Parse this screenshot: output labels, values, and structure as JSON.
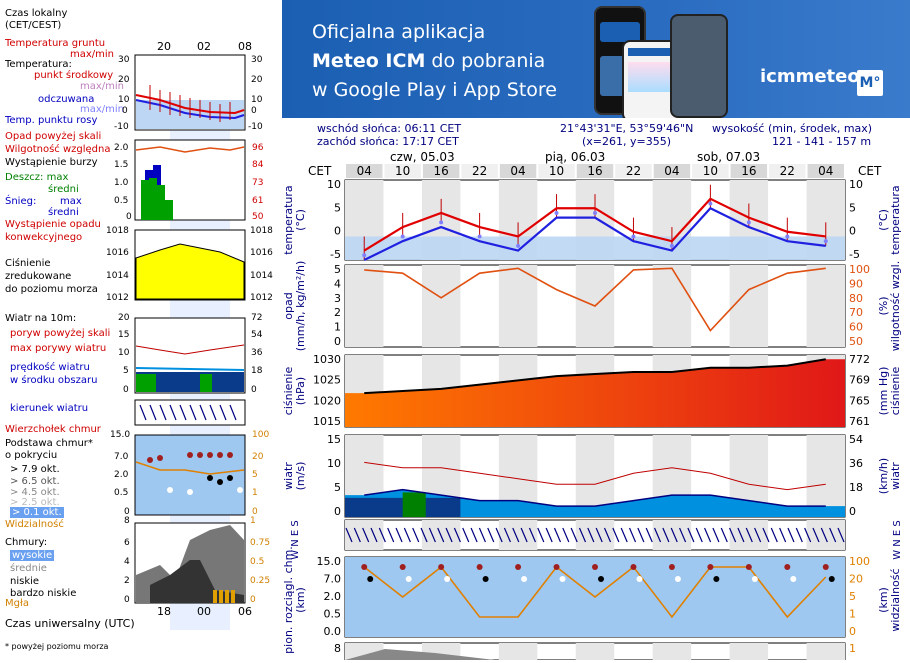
{
  "legend": {
    "time_local": "Czas lokalny\n(CET/CEST)",
    "time_local_l1": "Czas lokalny",
    "time_local_l2": "(CET/CEST)",
    "top_hours": [
      "20",
      "02",
      "08"
    ],
    "soil_temp": "Temperatura gruntu",
    "soil_temp_minmax": "max/min",
    "temperature": "Temperatura:",
    "midpoint": "punkt środkowy",
    "maxmin": "max/min",
    "feels_like": "odczuwana",
    "feels_maxmin": "max/min",
    "dew_point": "Temp. punktu rosy",
    "precip_threshold": "Opad powyżej skali",
    "humidity": "Wilgotność względna",
    "storm": "Wystąpienie burzy",
    "rain_max": "Deszcz: max",
    "rain_avg": "średni",
    "snow": "Śnieg:",
    "snow_max": "max",
    "snow_avg": "średni",
    "precip_occurrence_1": "Wystąpienie opadu",
    "precip_occurrence_2": "konwekcyjnego",
    "pressure_1": "Ciśnienie",
    "pressure_2": "zredukowane",
    "pressure_3": "do poziomu morza",
    "wind_10m": "Wiatr na 10m:",
    "gust_threshold": "poryw powyżej skali",
    "max_gust": "max porywy wiatru",
    "wind_speed_1": "prędkość wiatru",
    "wind_speed_2": "w środku obszaru",
    "wind_dir": "kierunek wiatru",
    "cloud_top": "Wierzchołek chmur",
    "cloud_base_1": "Podstawa chmur*",
    "cloud_base_2": "o pokryciu",
    "oct_79": "> 7.9 okt.",
    "oct_65": "> 6.5 okt.",
    "oct_45": "> 4.5 okt.",
    "oct_25": "> 2.5 okt.",
    "oct_01": "> 0.1 okt.",
    "visibility": "Widzialność",
    "clouds": "Chmury:",
    "high": "wysokie",
    "medium": "średnie",
    "low": "niskie",
    "very_low": "bardzo niskie",
    "fog": "Mgła",
    "utc_time": "Czas uniwersalny (UTC)",
    "utc_hours": [
      "18",
      "00",
      "06"
    ],
    "footnote": "* powyżej poziomu morza",
    "temp_ticks": [
      "30",
      "20",
      "10",
      "0",
      "-10"
    ],
    "precip_ticks": [
      "2.0",
      "1.5",
      "1.0",
      "0.5",
      "0"
    ],
    "humid_ticks": [
      "96",
      "84",
      "73",
      "61",
      "50"
    ],
    "press_ticks": [
      "1018",
      "1016",
      "1014",
      "1012"
    ],
    "wind_ticks": [
      "20",
      "15",
      "10",
      "5",
      "0"
    ],
    "wind_kmh_ticks": [
      "72",
      "54",
      "36",
      "18",
      "0"
    ],
    "cloud_ticks": [
      "15.0",
      "7.0",
      "2.0",
      "0.5",
      "0"
    ],
    "vis_ticks": [
      "100",
      "20",
      "5",
      "1",
      "0"
    ],
    "cloudcover_ticks": [
      "8",
      "6",
      "4",
      "2",
      "0"
    ],
    "cloudcover_r_ticks": [
      "1",
      "0.75",
      "0.5",
      "0.25",
      "0"
    ]
  },
  "banner": {
    "line1": "Oficjalna aplikacja",
    "line2_bold": "Meteo ICM",
    "line2_rest": " do pobrania",
    "line3": "w Google Play i App Store",
    "logo": "icmmeteo",
    "logo_box": "M°"
  },
  "info": {
    "sunrise": "wschód słońca: 06:11 CET",
    "sunset": "zachód słońca: 17:17 CET",
    "coords": "21°43'31\"E, 53°59'46\"N",
    "grid": "(x=261,  y=355)",
    "elevation_label": "wysokość (min, środek, max)",
    "elevation": "121 - 141 - 157 m"
  },
  "chart": {
    "cet_left": "CET",
    "cet_right": "CET",
    "days": [
      "czw, 05.03",
      "pią, 06.03",
      "sob, 07.03"
    ],
    "hours": [
      "04",
      "10",
      "16",
      "22",
      "04",
      "10",
      "16",
      "22",
      "04",
      "10",
      "16",
      "22",
      "04"
    ],
    "panels": {
      "temperature": {
        "ylabel_l": "temperatura",
        "unit_l": "(°C)",
        "ylabel_r": "temperatura",
        "unit_r": "(°C)",
        "ticks": [
          "10",
          "5",
          "0",
          "-5"
        ]
      },
      "precip": {
        "ylabel_l": "opad",
        "unit_l": "(mm/h, kg/m²/h)",
        "ylabel_r": "wilgotność wzgl.",
        "unit_r": "(%)",
        "ticks_l": [
          "5",
          "4",
          "3",
          "2",
          "1",
          "0"
        ],
        "ticks_r": [
          "100",
          "90",
          "80",
          "70",
          "60",
          "50"
        ]
      },
      "pressure": {
        "ylabel_l": "ciśnienie",
        "unit_l": "(hPa)",
        "ylabel_r": "ciśnienie",
        "unit_r": "(mm Hg)",
        "ticks_l": [
          "1030",
          "1025",
          "1020",
          "1015"
        ],
        "ticks_r": [
          "772",
          "769",
          "765",
          "761"
        ]
      },
      "wind": {
        "ylabel_l": "wiatr",
        "unit_l": "(m/s)",
        "ylabel_r": "wiatr",
        "unit_r": "(km/h)",
        "ticks_l": [
          "15",
          "10",
          "5",
          "0"
        ],
        "ticks_r": [
          "54",
          "36",
          "18",
          "0"
        ]
      },
      "winddir": {
        "label_l": "W N E S",
        "label_r": "W N E S"
      },
      "cloud": {
        "ylabel_l": "pion. rozciągl. chm.",
        "unit_l": "(km)",
        "ylabel_r": "widzialność",
        "unit_r": "(km)",
        "ticks_l": [
          "15.0",
          "7.0",
          "2.0",
          "0.5",
          "0.0"
        ],
        "ticks_r": [
          "100",
          "20",
          "5",
          "1",
          "0"
        ]
      },
      "cloudcover": {
        "ticks_l": [
          "8"
        ],
        "ticks_r": [
          "1"
        ]
      }
    }
  },
  "chart_data": [
    {
      "type": "line",
      "title": "temperatura",
      "ylabel": "(°C)",
      "ylim": [
        -5,
        12
      ],
      "x": [
        "04",
        "10",
        "16",
        "22",
        "04",
        "10",
        "16",
        "22",
        "04",
        "10",
        "16",
        "22",
        "04"
      ],
      "series": [
        {
          "name": "punkt środkowy",
          "values": [
            -3,
            2,
            5,
            2,
            0,
            6,
            6,
            1,
            -1,
            8,
            4,
            1,
            0
          ]
        },
        {
          "name": "odczuwana",
          "values": [
            -5,
            -1,
            2,
            -1,
            -3,
            4,
            4,
            -1,
            -3,
            6,
            2,
            -1,
            -2
          ]
        }
      ]
    },
    {
      "type": "line",
      "title": "wilgotność wzgl.",
      "ylabel": "(%)",
      "ylim": [
        50,
        100
      ],
      "x": [
        "04",
        "10",
        "16",
        "22",
        "04",
        "10",
        "16",
        "22",
        "04",
        "10",
        "16",
        "22",
        "04"
      ],
      "series": [
        {
          "name": "Wilgotność względna",
          "values": [
            97,
            95,
            80,
            95,
            98,
            85,
            75,
            97,
            98,
            60,
            85,
            95,
            98
          ]
        }
      ]
    },
    {
      "type": "area",
      "title": "ciśnienie",
      "ylabel": "(hPa)",
      "ylim": [
        1015,
        1032
      ],
      "x": [
        "04",
        "10",
        "16",
        "22",
        "04",
        "10",
        "16",
        "22",
        "04",
        "10",
        "16",
        "22",
        "04"
      ],
      "series": [
        {
          "name": "Ciśnienie",
          "values": [
            1023,
            1023.5,
            1024,
            1025,
            1026,
            1027,
            1027.5,
            1028,
            1028,
            1029,
            1029,
            1029.5,
            1031
          ]
        }
      ]
    },
    {
      "type": "area",
      "title": "wiatr",
      "ylabel": "(m/s)",
      "ylim": [
        0,
        15
      ],
      "x": [
        "04",
        "10",
        "16",
        "22",
        "04",
        "10",
        "16",
        "22",
        "04",
        "10",
        "16",
        "22",
        "04"
      ],
      "series": [
        {
          "name": "prędkość wiatru",
          "values": [
            4,
            5,
            4,
            3,
            3,
            2,
            2,
            3,
            4,
            4,
            3,
            2,
            2
          ]
        },
        {
          "name": "max porywy wiatru",
          "values": [
            10,
            9,
            9,
            8,
            7,
            6,
            6,
            8,
            9,
            8,
            6,
            5,
            6
          ]
        }
      ]
    }
  ],
  "colors": {
    "temp_line": "#e00000",
    "feels_line": "#2020e0",
    "humidity_line": "#e05010",
    "pressure_line": "#000000",
    "wind_dark": "#0a3a8a",
    "wind_light": "#0090e0",
    "wind_green": "#008000",
    "gust": "#c00000",
    "banner": "#1b5fb3",
    "grid_bg": "#e6e6e6",
    "sky_blue": "#9ec8f0"
  }
}
